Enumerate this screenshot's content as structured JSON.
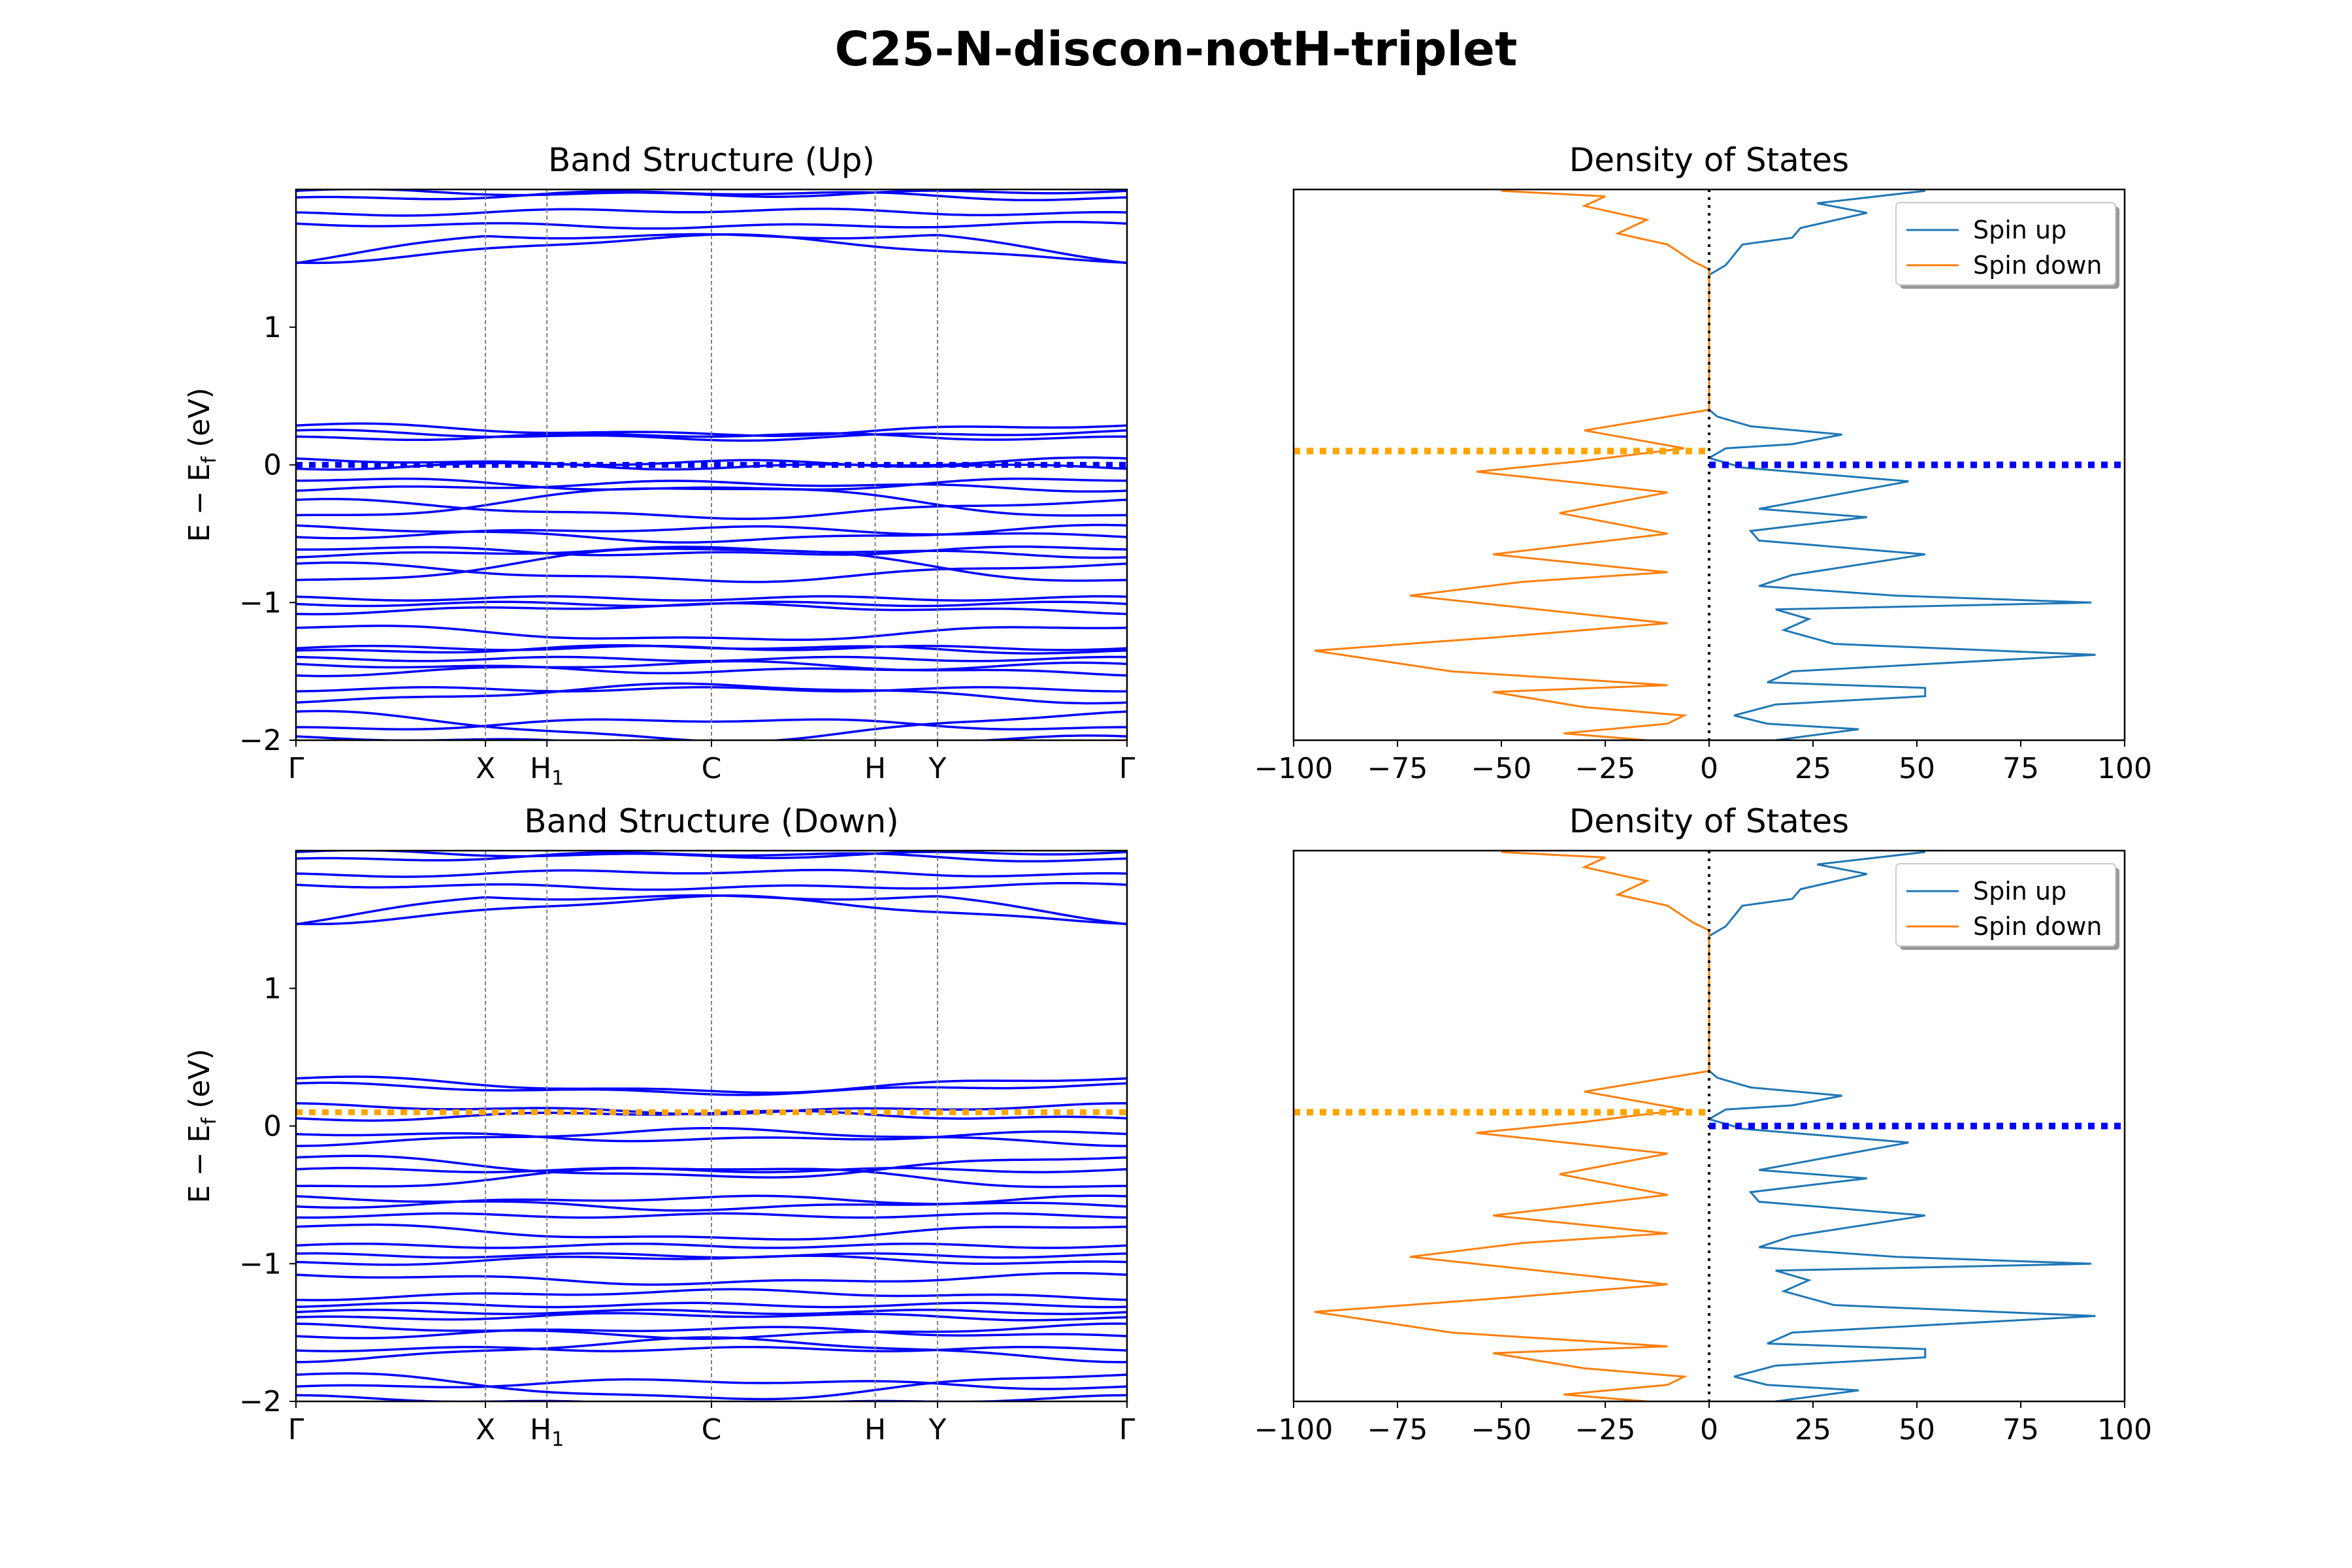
{
  "figure": {
    "title": "C25-N-discon-notH-triplet"
  },
  "colors": {
    "bands": "#0000ff",
    "spin_up": "#1f77b4",
    "spin_down": "#ff7f0e",
    "fermi_up": "#0000ff",
    "fermi_down": "#ffa500",
    "hsym_lines": "#808080"
  },
  "chart_data": [
    {
      "id": "band-up",
      "type": "line",
      "title": "Band Structure (Up)",
      "ylabel": "E − E_f (eV)",
      "ylim": [
        -2,
        2
      ],
      "yticks": [
        -2,
        -1,
        0,
        1
      ],
      "kpath": [
        {
          "label": "Γ",
          "x": 0.0
        },
        {
          "label": "X",
          "x": 0.228
        },
        {
          "label": "H₁",
          "x": 0.302
        },
        {
          "label": "C",
          "x": 0.5
        },
        {
          "label": "H",
          "x": 0.697
        },
        {
          "label": "Y",
          "x": 0.772
        },
        {
          "label": "Γ",
          "x": 1.0
        }
      ],
      "fermi_level": 0.0,
      "fermi_color": "#0000ff",
      "bands": [
        {
          "e0": 1.99,
          "amp": -0.03
        },
        {
          "e0": 1.93,
          "amp": 0.05
        },
        {
          "e0": 1.82,
          "amp": 0.03
        },
        {
          "e0": 1.75,
          "amp": -0.02
        },
        {
          "e0": 1.48,
          "amp": 0.18
        },
        {
          "e0": 1.48,
          "amp": 0.18,
          "mirror": true
        },
        {
          "e0": 0.29,
          "amp": -0.07
        },
        {
          "e0": 0.24,
          "amp": -0.05
        },
        {
          "e0": 0.19,
          "amp": 0.03
        },
        {
          "e0": 0.04,
          "amp": -0.06
        },
        {
          "e0": -0.02,
          "amp": 0.04
        },
        {
          "e0": -0.1,
          "amp": -0.08
        },
        {
          "e0": -0.18,
          "amp": 0.05
        },
        {
          "e0": -0.26,
          "amp": -0.12
        },
        {
          "e0": -0.38,
          "amp": 0.22
        },
        {
          "e0": -0.45,
          "amp": -0.1
        },
        {
          "e0": -0.52,
          "amp": 0.06
        },
        {
          "e0": -0.6,
          "amp": -0.05
        },
        {
          "e0": -0.66,
          "amp": 0.05
        },
        {
          "e0": -0.72,
          "amp": -0.12
        },
        {
          "e0": -0.85,
          "amp": 0.25
        },
        {
          "e0": -0.97,
          "amp": 0.0
        },
        {
          "e0": -1.01,
          "amp": 0.0
        },
        {
          "e0": -1.07,
          "amp": 0.05
        },
        {
          "e0": -1.17,
          "amp": -0.1
        },
        {
          "e0": -1.33,
          "amp": 0.0
        },
        {
          "e0": -1.36,
          "amp": 0.04
        },
        {
          "e0": -1.41,
          "amp": 0.0
        },
        {
          "e0": -1.45,
          "amp": -0.05
        },
        {
          "e0": -1.52,
          "amp": 0.08
        },
        {
          "e0": -1.63,
          "amp": 0.0
        },
        {
          "e0": -1.72,
          "amp": 0.12
        },
        {
          "e0": -1.8,
          "amp": -0.2
        },
        {
          "e0": -1.92,
          "amp": 0.07
        },
        {
          "e0": -1.98,
          "amp": -0.05
        }
      ]
    },
    {
      "id": "dos-up",
      "type": "line",
      "title": "Density of States",
      "xlim": [
        -100,
        100
      ],
      "xticks": [
        -100,
        -75,
        -50,
        -25,
        0,
        25,
        50,
        75,
        100
      ],
      "ylim": [
        -2,
        2
      ],
      "fermi_up": 0.0,
      "fermi_down": 0.1,
      "legend": {
        "position": "upper right",
        "entries": [
          "Spin up",
          "Spin down"
        ]
      },
      "series": [
        {
          "name": "Spin up",
          "color": "#1f77b4",
          "points": [
            [
              16,
              -2.0
            ],
            [
              36,
              -1.92
            ],
            [
              14,
              -1.88
            ],
            [
              6,
              -1.82
            ],
            [
              16,
              -1.74
            ],
            [
              52,
              -1.68
            ],
            [
              52,
              -1.62
            ],
            [
              14,
              -1.58
            ],
            [
              20,
              -1.5
            ],
            [
              93,
              -1.38
            ],
            [
              30,
              -1.3
            ],
            [
              18,
              -1.2
            ],
            [
              24,
              -1.12
            ],
            [
              16,
              -1.05
            ],
            [
              92,
              -1.0
            ],
            [
              45,
              -0.95
            ],
            [
              12,
              -0.88
            ],
            [
              20,
              -0.8
            ],
            [
              52,
              -0.65
            ],
            [
              12,
              -0.55
            ],
            [
              10,
              -0.48
            ],
            [
              38,
              -0.38
            ],
            [
              12,
              -0.32
            ],
            [
              48,
              -0.12
            ],
            [
              8,
              -0.02
            ],
            [
              0,
              0.05
            ],
            [
              4,
              0.12
            ],
            [
              20,
              0.15
            ],
            [
              32,
              0.22
            ],
            [
              10,
              0.28
            ],
            [
              2,
              0.35
            ],
            [
              0,
              0.4
            ],
            [
              0,
              1.38
            ],
            [
              4,
              1.45
            ],
            [
              8,
              1.6
            ],
            [
              20,
              1.65
            ],
            [
              22,
              1.72
            ],
            [
              38,
              1.83
            ],
            [
              26,
              1.9
            ],
            [
              52,
              1.99
            ]
          ]
        },
        {
          "name": "Spin down",
          "color": "#ff7f0e",
          "points": [
            [
              -15,
              -2.0
            ],
            [
              -35,
              -1.95
            ],
            [
              -10,
              -1.88
            ],
            [
              -6,
              -1.82
            ],
            [
              -30,
              -1.76
            ],
            [
              -52,
              -1.65
            ],
            [
              -10,
              -1.6
            ],
            [
              -62,
              -1.5
            ],
            [
              -95,
              -1.35
            ],
            [
              -50,
              -1.25
            ],
            [
              -10,
              -1.15
            ],
            [
              -72,
              -0.95
            ],
            [
              -45,
              -0.85
            ],
            [
              -10,
              -0.78
            ],
            [
              -52,
              -0.65
            ],
            [
              -10,
              -0.5
            ],
            [
              -36,
              -0.35
            ],
            [
              -10,
              -0.2
            ],
            [
              -56,
              -0.05
            ],
            [
              -30,
              0.03
            ],
            [
              -6,
              0.12
            ],
            [
              -30,
              0.25
            ],
            [
              0,
              0.4
            ],
            [
              0,
              1.42
            ],
            [
              -4,
              1.48
            ],
            [
              -10,
              1.6
            ],
            [
              -22,
              1.68
            ],
            [
              -15,
              1.78
            ],
            [
              -30,
              1.88
            ],
            [
              -25,
              1.95
            ],
            [
              -50,
              1.99
            ]
          ]
        }
      ]
    },
    {
      "id": "band-down",
      "type": "line",
      "title": "Band Structure (Down)",
      "ylabel": "E − E_f (eV)",
      "ylim": [
        -2,
        2
      ],
      "yticks": [
        -2,
        -1,
        0,
        1
      ],
      "kpath": [
        {
          "label": "Γ",
          "x": 0.0
        },
        {
          "label": "X",
          "x": 0.228
        },
        {
          "label": "H₁",
          "x": 0.302
        },
        {
          "label": "C",
          "x": 0.5
        },
        {
          "label": "H",
          "x": 0.697
        },
        {
          "label": "Y",
          "x": 0.772
        },
        {
          "label": "Γ",
          "x": 1.0
        }
      ],
      "fermi_level": 0.1,
      "fermi_color": "#ffa500",
      "bands": [
        {
          "e0": 1.99,
          "amp": -0.03
        },
        {
          "e0": 1.93,
          "amp": 0.05
        },
        {
          "e0": 1.82,
          "amp": 0.03
        },
        {
          "e0": 1.75,
          "amp": -0.02
        },
        {
          "e0": 1.48,
          "amp": 0.18
        },
        {
          "e0": 1.48,
          "amp": 0.18,
          "mirror": true
        },
        {
          "e0": 0.35,
          "amp": -0.1
        },
        {
          "e0": 0.3,
          "amp": -0.06
        },
        {
          "e0": 0.15,
          "amp": -0.05
        },
        {
          "e0": 0.05,
          "amp": 0.05
        },
        {
          "e0": -0.05,
          "amp": -0.05
        },
        {
          "e0": -0.13,
          "amp": 0.1
        },
        {
          "e0": -0.22,
          "amp": -0.15
        },
        {
          "e0": -0.32,
          "amp": 0.0
        },
        {
          "e0": -0.45,
          "amp": 0.15
        },
        {
          "e0": -0.52,
          "amp": -0.08
        },
        {
          "e0": -0.58,
          "amp": 0.06
        },
        {
          "e0": -0.65,
          "amp": 0.0
        },
        {
          "e0": -0.72,
          "amp": -0.1
        },
        {
          "e0": -0.87,
          "amp": 0.0
        },
        {
          "e0": -0.94,
          "amp": 0.0
        },
        {
          "e0": -1.0,
          "amp": 0.05
        },
        {
          "e0": -1.08,
          "amp": -0.06
        },
        {
          "e0": -1.25,
          "amp": 0.05
        },
        {
          "e0": -1.3,
          "amp": 0.0
        },
        {
          "e0": -1.35,
          "amp": 0.0
        },
        {
          "e0": -1.4,
          "amp": 0.03
        },
        {
          "e0": -1.45,
          "amp": -0.08
        },
        {
          "e0": -1.53,
          "amp": 0.06
        },
        {
          "e0": -1.62,
          "amp": 0.0
        },
        {
          "e0": -1.7,
          "amp": 0.15
        },
        {
          "e0": -1.8,
          "amp": -0.18
        },
        {
          "e0": -1.9,
          "amp": 0.05
        },
        {
          "e0": -1.97,
          "amp": -0.06
        }
      ]
    },
    {
      "id": "dos-down",
      "type": "line",
      "title": "Density of States",
      "xlim": [
        -100,
        100
      ],
      "xticks": [
        -100,
        -75,
        -50,
        -25,
        0,
        25,
        50,
        75,
        100
      ],
      "ylim": [
        -2,
        2
      ],
      "fermi_up": 0.0,
      "fermi_down": 0.1,
      "legend": {
        "position": "upper right",
        "entries": [
          "Spin up",
          "Spin down"
        ]
      },
      "series": [
        {
          "name": "Spin up",
          "color": "#1f77b4",
          "points": [
            [
              16,
              -2.0
            ],
            [
              36,
              -1.92
            ],
            [
              14,
              -1.88
            ],
            [
              6,
              -1.82
            ],
            [
              16,
              -1.74
            ],
            [
              52,
              -1.68
            ],
            [
              52,
              -1.62
            ],
            [
              14,
              -1.58
            ],
            [
              20,
              -1.5
            ],
            [
              93,
              -1.38
            ],
            [
              30,
              -1.3
            ],
            [
              18,
              -1.2
            ],
            [
              24,
              -1.12
            ],
            [
              16,
              -1.05
            ],
            [
              92,
              -1.0
            ],
            [
              45,
              -0.95
            ],
            [
              12,
              -0.88
            ],
            [
              20,
              -0.8
            ],
            [
              52,
              -0.65
            ],
            [
              12,
              -0.55
            ],
            [
              10,
              -0.48
            ],
            [
              38,
              -0.38
            ],
            [
              12,
              -0.32
            ],
            [
              48,
              -0.12
            ],
            [
              8,
              -0.02
            ],
            [
              0,
              0.05
            ],
            [
              4,
              0.12
            ],
            [
              20,
              0.15
            ],
            [
              32,
              0.22
            ],
            [
              10,
              0.28
            ],
            [
              2,
              0.35
            ],
            [
              0,
              0.4
            ],
            [
              0,
              1.38
            ],
            [
              4,
              1.45
            ],
            [
              8,
              1.6
            ],
            [
              20,
              1.65
            ],
            [
              22,
              1.72
            ],
            [
              38,
              1.83
            ],
            [
              26,
              1.9
            ],
            [
              52,
              1.99
            ]
          ]
        },
        {
          "name": "Spin down",
          "color": "#ff7f0e",
          "points": [
            [
              -15,
              -2.0
            ],
            [
              -35,
              -1.95
            ],
            [
              -10,
              -1.88
            ],
            [
              -6,
              -1.82
            ],
            [
              -30,
              -1.76
            ],
            [
              -52,
              -1.65
            ],
            [
              -10,
              -1.6
            ],
            [
              -62,
              -1.5
            ],
            [
              -95,
              -1.35
            ],
            [
              -50,
              -1.25
            ],
            [
              -10,
              -1.15
            ],
            [
              -72,
              -0.95
            ],
            [
              -45,
              -0.85
            ],
            [
              -10,
              -0.78
            ],
            [
              -52,
              -0.65
            ],
            [
              -10,
              -0.5
            ],
            [
              -36,
              -0.35
            ],
            [
              -10,
              -0.2
            ],
            [
              -56,
              -0.05
            ],
            [
              -30,
              0.03
            ],
            [
              -6,
              0.12
            ],
            [
              -30,
              0.25
            ],
            [
              0,
              0.4
            ],
            [
              0,
              1.42
            ],
            [
              -4,
              1.48
            ],
            [
              -10,
              1.6
            ],
            [
              -22,
              1.68
            ],
            [
              -15,
              1.78
            ],
            [
              -30,
              1.88
            ],
            [
              -25,
              1.95
            ],
            [
              -50,
              1.99
            ]
          ]
        }
      ]
    }
  ]
}
